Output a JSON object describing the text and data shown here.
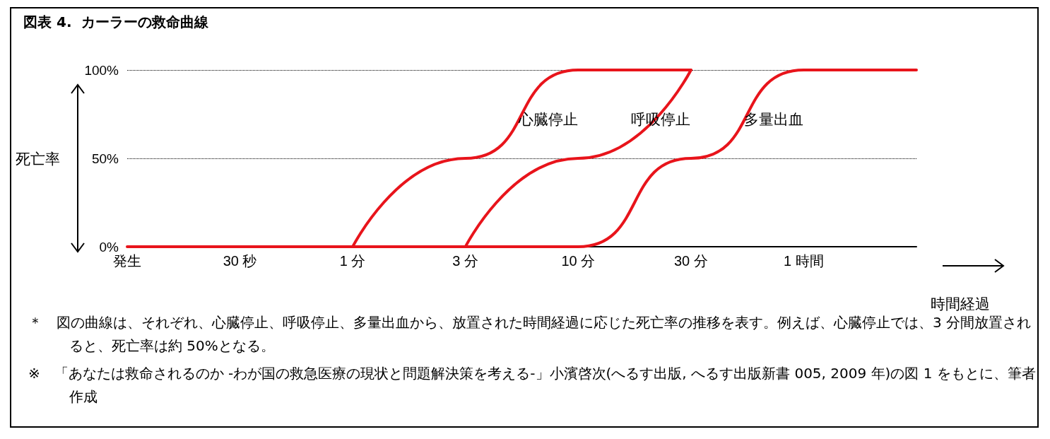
{
  "chart_data": {
    "type": "line",
    "title": "図表 4.  カーラーの救命曲線",
    "xlabel": "時間経過",
    "ylabel": "死亡率",
    "categories": [
      "発生",
      "30 秒",
      "1 分",
      "3 分",
      "10 分",
      "30 分",
      "1 時間",
      null
    ],
    "series": [
      {
        "name": "心臓停止",
        "color": "#e8141b",
        "values": [
          null,
          null,
          0,
          50,
          100,
          100,
          null,
          null
        ]
      },
      {
        "name": "呼吸停止",
        "color": "#e8141b",
        "values": [
          null,
          null,
          null,
          0,
          50,
          100,
          null,
          null
        ]
      },
      {
        "name": "多量出血",
        "color": "#e8141b",
        "values": [
          0,
          0,
          0,
          0,
          0,
          50,
          100,
          100
        ]
      }
    ],
    "ylim": [
      0,
      100
    ],
    "yticks": [
      {
        "value": 0,
        "label": "0%"
      },
      {
        "value": 50,
        "label": "50%"
      },
      {
        "value": 100,
        "label": "100%"
      }
    ],
    "grid": "y",
    "legend": false,
    "marker": "none",
    "line_style": "solid",
    "annotations": [
      "＊　図の曲線は、それぞれ、心臓停止、呼吸停止、多量出血から、放置された時間経過に応じた死亡率の推移を表す。例えば、心臓停止では、3 分間放置されると、死亡率は約 50%となる。",
      "※　「あなたは救命されるのか -わが国の救急医療の現状と問題解決策を考える-」小濱啓次(へるす出版, へるす出版新書 005, 2009 年)の図 1 をもとに、筆者作成"
    ]
  }
}
